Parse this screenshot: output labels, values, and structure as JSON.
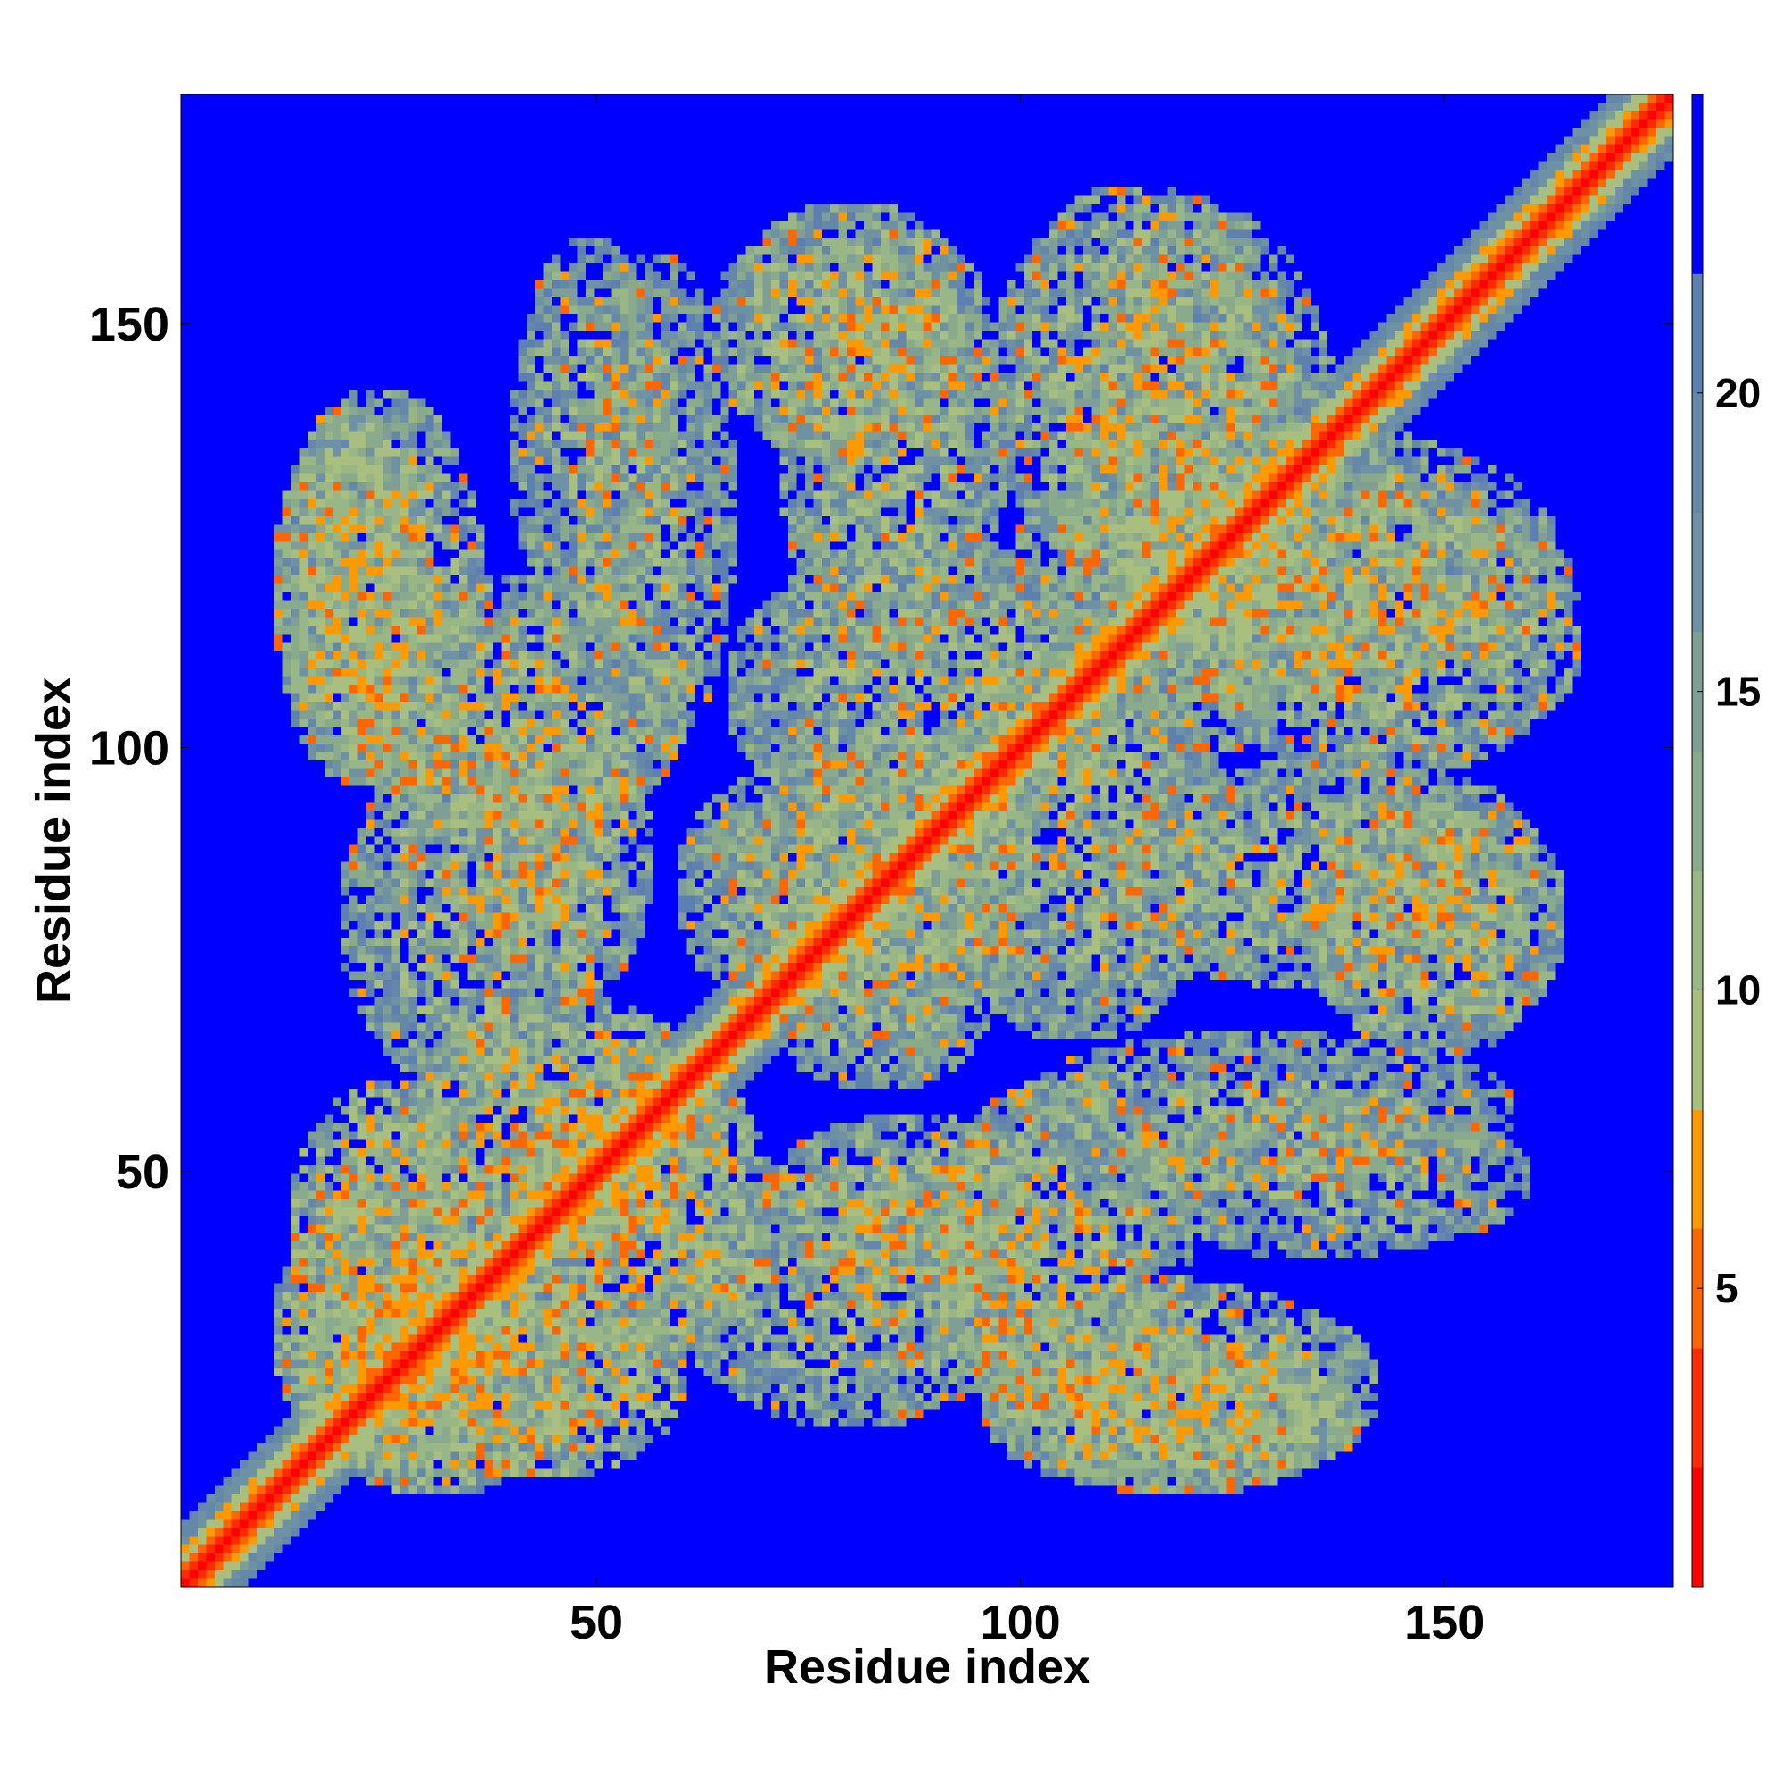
{
  "chart_data": {
    "type": "heatmap",
    "title": "",
    "xlabel": "Residue index",
    "ylabel": "Residue index",
    "xlim": [
      1,
      177
    ],
    "ylim": [
      1,
      177
    ],
    "x_ticks": [
      50,
      100,
      150
    ],
    "y_ticks": [
      50,
      100,
      150
    ],
    "colorbar": {
      "range": [
        0,
        22
      ],
      "ticks": [
        5,
        10,
        15,
        20
      ],
      "bands": [
        {
          "from": 0,
          "to": 2,
          "color": "#ff0000"
        },
        {
          "from": 2,
          "to": 4,
          "color": "#ff2a00"
        },
        {
          "from": 4,
          "to": 6,
          "color": "#ff6600"
        },
        {
          "from": 6,
          "to": 8,
          "color": "#ff9900"
        },
        {
          "from": 8,
          "to": 10,
          "color": "#a9bf80"
        },
        {
          "from": 10,
          "to": 12,
          "color": "#99b786"
        },
        {
          "from": 12,
          "to": 14,
          "color": "#8aaa8c"
        },
        {
          "from": 14,
          "to": 16,
          "color": "#7f9f96"
        },
        {
          "from": 16,
          "to": 18,
          "color": "#6e92a3"
        },
        {
          "from": 18,
          "to": 20,
          "color": "#6688a8"
        },
        {
          "from": 20,
          "to": 22,
          "color": "#5d80b0"
        }
      ],
      "cap_color": "#0000ff"
    },
    "cutoff": 22,
    "background_color": "#0000ff",
    "description_of_data": "Symmetric residue-residue distance map; diagonal band near 0-4, contact blocks shown off-diagonal, values above cutoff drawn blue.",
    "blocks": [
      {
        "x": [
          14,
          38
        ],
        "y": [
          30,
          60
        ],
        "level": 11
      },
      {
        "x": [
          14,
          48
        ],
        "y": [
          12,
          40
        ],
        "level": 11
      },
      {
        "x": [
          12,
          30
        ],
        "y": [
          96,
          140
        ],
        "level": 12
      },
      {
        "x": [
          40,
          58
        ],
        "y": [
          110,
          160
        ],
        "level": 14
      },
      {
        "x": [
          64,
          96
        ],
        "y": [
          134,
          164
        ],
        "level": 12
      },
      {
        "x": [
          97,
          132
        ],
        "y": [
          120,
          166
        ],
        "level": 12
      },
      {
        "x": [
          100,
          163
        ],
        "y": [
          106,
          138
        ],
        "level": 13
      },
      {
        "x": [
          110,
          160
        ],
        "y": [
          72,
          98
        ],
        "level": 13
      },
      {
        "x": [
          100,
          158
        ],
        "y": [
          48,
          66
        ],
        "level": 14
      },
      {
        "x": [
          96,
          142
        ],
        "y": [
          12,
          36
        ],
        "level": 12
      },
      {
        "x": [
          60,
          100
        ],
        "y": [
          20,
          50
        ],
        "level": 13
      },
      {
        "x": [
          60,
          100
        ],
        "y": [
          66,
          100
        ],
        "level": 13
      },
      {
        "x": [
          36,
          56
        ],
        "y": [
          70,
          104
        ],
        "level": 12
      },
      {
        "x": [
          28,
          64
        ],
        "y": [
          40,
          70
        ],
        "level": 11
      },
      {
        "x": [
          66,
          112
        ],
        "y": [
          90,
          124
        ],
        "level": 13
      },
      {
        "x": [
          20,
          60
        ],
        "y": [
          90,
          120
        ],
        "level": 12
      }
    ]
  }
}
